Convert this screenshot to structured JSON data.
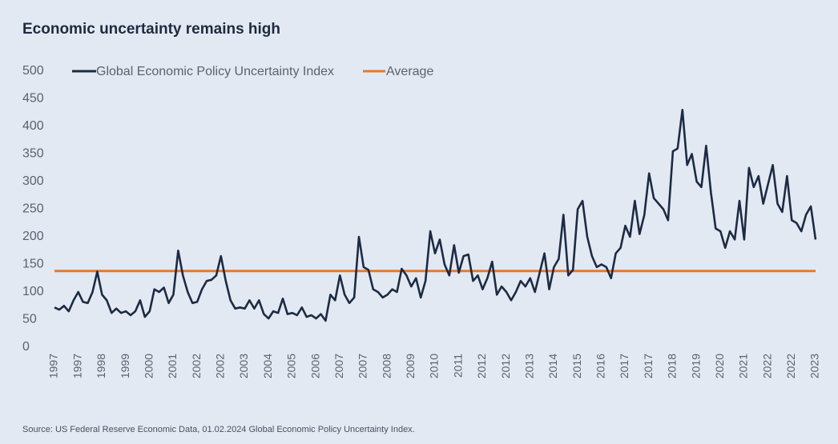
{
  "chart_data": {
    "type": "line",
    "title": "Economic uncertainty remains high",
    "source": "Source: US Federal Reserve Economic Data, 01.02.2024 Global Economic Policy Uncertainty Index.",
    "xticks": [
      "1997",
      "1997",
      "1998",
      "1999",
      "2000",
      "2001",
      "2002",
      "2002",
      "2003",
      "2004",
      "2005",
      "2006",
      "2007",
      "2007",
      "2008",
      "2009",
      "2010",
      "2011",
      "2012",
      "2012",
      "2013",
      "2014",
      "2015",
      "2016",
      "2017",
      "2017",
      "2018",
      "2019",
      "2020",
      "2021",
      "2022",
      "2022",
      "2023"
    ],
    "ylim": [
      0,
      500
    ],
    "yticks": [
      0,
      50,
      100,
      150,
      200,
      250,
      300,
      350,
      400,
      450,
      500
    ],
    "series": [
      {
        "name": "Global Economic Policy Uncertainty Index",
        "color": "#1c2b44",
        "values": [
          72,
          68,
          75,
          65,
          85,
          100,
          82,
          80,
          100,
          137,
          95,
          85,
          62,
          70,
          62,
          65,
          58,
          65,
          85,
          55,
          65,
          105,
          100,
          108,
          80,
          95,
          175,
          130,
          100,
          80,
          82,
          105,
          120,
          122,
          130,
          165,
          120,
          85,
          70,
          72,
          70,
          85,
          70,
          85,
          60,
          52,
          65,
          62,
          88,
          60,
          62,
          58,
          72,
          55,
          58,
          52,
          60,
          48,
          95,
          85,
          130,
          95,
          80,
          90,
          200,
          145,
          140,
          105,
          100,
          90,
          95,
          105,
          100,
          142,
          130,
          110,
          125,
          90,
          120,
          210,
          170,
          195,
          150,
          130,
          185,
          135,
          165,
          168,
          120,
          130,
          105,
          125,
          155,
          95,
          110,
          100,
          85,
          100,
          120,
          110,
          125,
          100,
          135,
          170,
          105,
          145,
          160,
          240,
          130,
          140,
          250,
          265,
          200,
          165,
          145,
          150,
          145,
          125,
          170,
          180,
          220,
          200,
          265,
          205,
          240,
          315,
          270,
          260,
          250,
          230,
          355,
          360,
          430,
          330,
          350,
          300,
          290,
          365,
          280,
          215,
          210,
          180,
          210,
          195,
          265,
          195,
          325,
          290,
          310,
          260,
          295,
          330,
          260,
          245,
          310,
          230,
          225,
          210,
          240,
          255,
          195
        ]
      }
    ],
    "reference_lines": [
      {
        "name": "Average",
        "color": "#e8792b",
        "value": 138
      }
    ]
  }
}
